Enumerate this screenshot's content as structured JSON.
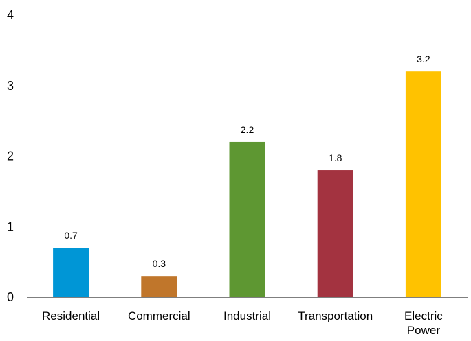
{
  "chart_data": {
    "type": "bar",
    "title": "",
    "xlabel": "",
    "ylabel": "",
    "categories": [
      "Residential",
      "Commercial",
      "Industrial",
      "Transportation",
      "Electric Power"
    ],
    "category_lines": [
      [
        "Residential"
      ],
      [
        "Commercial"
      ],
      [
        "Industrial"
      ],
      [
        "Transportation"
      ],
      [
        "Electric",
        "Power"
      ]
    ],
    "values": [
      0.7,
      0.3,
      2.2,
      1.8,
      3.2
    ],
    "data_labels": [
      "0.7",
      "0.3",
      "2.2",
      "1.8",
      "3.2"
    ],
    "bar_colors": [
      "#0096D6",
      "#C0762B",
      "#5E9732",
      "#A33340",
      "#FFC200"
    ],
    "ylim": [
      0,
      4
    ],
    "yticks": [
      0,
      1,
      2,
      3,
      4
    ],
    "ytick_labels": [
      "0",
      "1",
      "2",
      "3",
      "4"
    ],
    "grid": false,
    "legend": "none"
  }
}
